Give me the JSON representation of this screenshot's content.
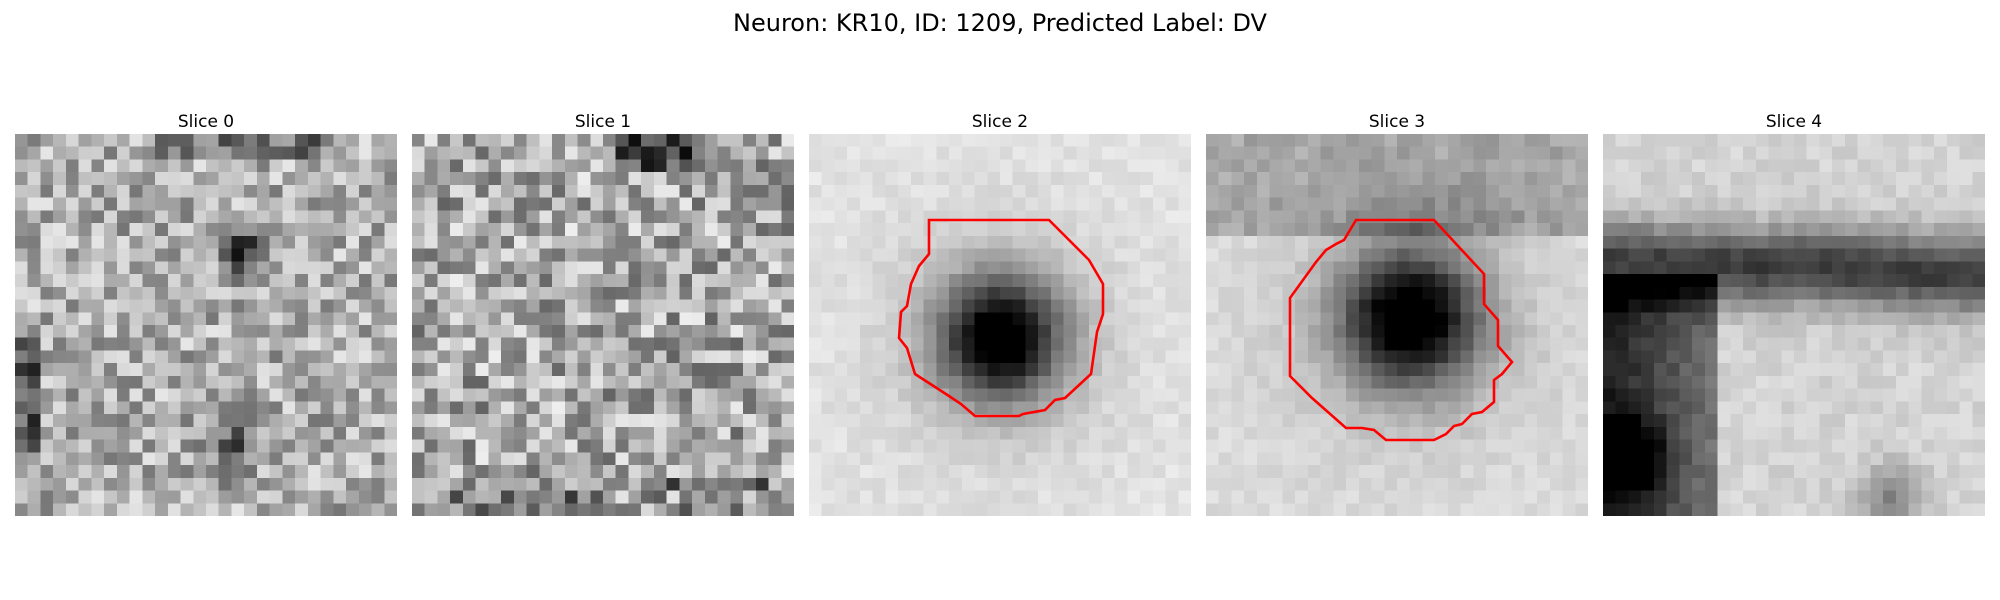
{
  "figure": {
    "title": "Neuron: KR10, ID: 1209, Predicted Label: DV"
  },
  "panels": [
    {
      "title": "Slice 0",
      "has_contour": false,
      "contour_color": "#ff0000"
    },
    {
      "title": "Slice 1",
      "has_contour": false,
      "contour_color": "#ff0000"
    },
    {
      "title": "Slice 2",
      "has_contour": true,
      "contour_color": "#ff0000"
    },
    {
      "title": "Slice 3",
      "has_contour": true,
      "contour_color": "#ff0000"
    },
    {
      "title": "Slice 4",
      "has_contour": false,
      "contour_color": "#ff0000"
    }
  ],
  "colormap": "gray_r"
}
